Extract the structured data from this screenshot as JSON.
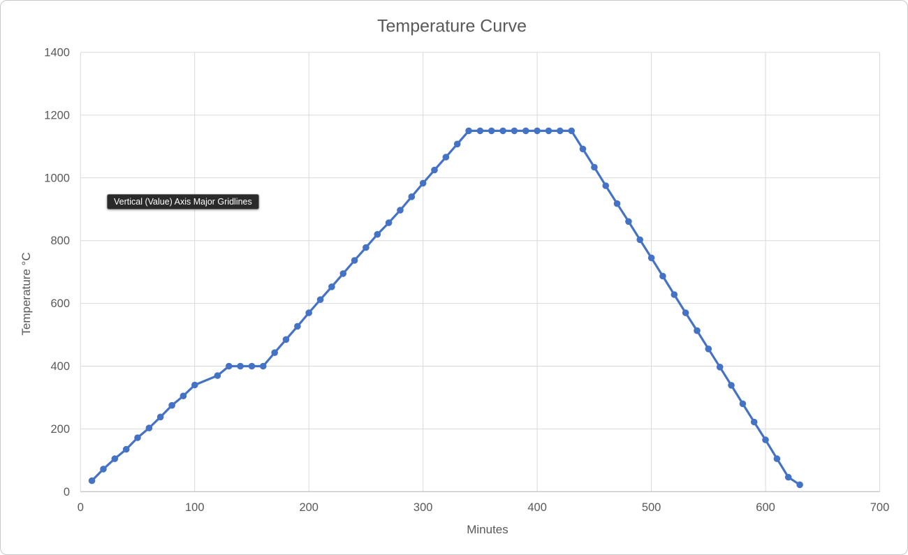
{
  "window": {
    "background": "#ffffff",
    "border_color": "#c9c9c9"
  },
  "tooltip": {
    "text": "Vertical (Value) Axis Major Gridlines",
    "bg": "#2a2a2a",
    "fg": "#ffffff"
  },
  "colors": {
    "series_line": "#4472C4",
    "gridline": "#D9D9D9",
    "axis_line": "#BFBFBF",
    "label_text": "#595959",
    "title_text": "#595959"
  },
  "chart_data": {
    "type": "line",
    "title": "Temperature Curve",
    "xlabel": "Minutes",
    "ylabel": "Temperature °C",
    "xlim": [
      0,
      700
    ],
    "ylim": [
      0,
      1400
    ],
    "x_ticks": [
      0,
      100,
      200,
      300,
      400,
      500,
      600,
      700
    ],
    "y_ticks": [
      0,
      200,
      400,
      600,
      800,
      1000,
      1200,
      1400
    ],
    "grid": true,
    "legend": "none",
    "marker": "circle",
    "series": [
      {
        "name": "Temperature",
        "color": "#4472C4",
        "points": [
          [
            10,
            35
          ],
          [
            20,
            72
          ],
          [
            30,
            105
          ],
          [
            40,
            135
          ],
          [
            50,
            172
          ],
          [
            60,
            203
          ],
          [
            70,
            238
          ],
          [
            80,
            275
          ],
          [
            90,
            305
          ],
          [
            100,
            340
          ],
          [
            120,
            370
          ],
          [
            130,
            400
          ],
          [
            140,
            400
          ],
          [
            150,
            400
          ],
          [
            160,
            400
          ],
          [
            170,
            443
          ],
          [
            180,
            485
          ],
          [
            190,
            527
          ],
          [
            200,
            570
          ],
          [
            210,
            612
          ],
          [
            220,
            653
          ],
          [
            230,
            695
          ],
          [
            240,
            737
          ],
          [
            250,
            778
          ],
          [
            260,
            820
          ],
          [
            270,
            857
          ],
          [
            280,
            897
          ],
          [
            290,
            940
          ],
          [
            300,
            983
          ],
          [
            310,
            1025
          ],
          [
            320,
            1066
          ],
          [
            330,
            1108
          ],
          [
            340,
            1150
          ],
          [
            350,
            1150
          ],
          [
            360,
            1150
          ],
          [
            370,
            1150
          ],
          [
            380,
            1150
          ],
          [
            390,
            1150
          ],
          [
            400,
            1150
          ],
          [
            410,
            1150
          ],
          [
            420,
            1150
          ],
          [
            430,
            1150
          ],
          [
            440,
            1092
          ],
          [
            450,
            1034
          ],
          [
            460,
            975
          ],
          [
            470,
            918
          ],
          [
            480,
            861
          ],
          [
            490,
            803
          ],
          [
            500,
            745
          ],
          [
            510,
            687
          ],
          [
            520,
            628
          ],
          [
            530,
            570
          ],
          [
            540,
            513
          ],
          [
            550,
            455
          ],
          [
            560,
            397
          ],
          [
            570,
            339
          ],
          [
            580,
            280
          ],
          [
            590,
            222
          ],
          [
            600,
            165
          ],
          [
            610,
            105
          ],
          [
            620,
            46
          ],
          [
            630,
            22
          ]
        ]
      }
    ]
  }
}
